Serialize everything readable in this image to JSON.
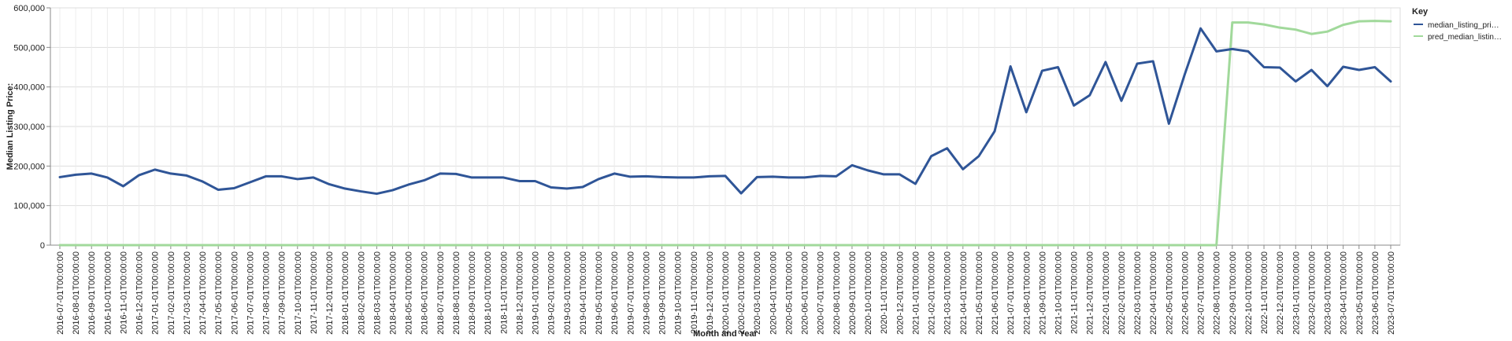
{
  "chart_data": {
    "type": "line",
    "xlabel": "Month and Year",
    "ylabel": "Median Listing Price:",
    "ylim": [
      0,
      600000
    ],
    "yticks": [
      "0",
      "100,000",
      "200,000",
      "300,000",
      "400,000",
      "500,000",
      "600,000"
    ],
    "grid": true,
    "legend": {
      "title": "Key",
      "position": "top-right",
      "entries": [
        "median_listing_pri…",
        "pred_median_listin…"
      ]
    },
    "x": [
      "2016-07-01T00:00:00",
      "2016-08-01T00:00:00",
      "2016-09-01T00:00:00",
      "2016-10-01T00:00:00",
      "2016-11-01T00:00:00",
      "2016-12-01T00:00:00",
      "2017-01-01T00:00:00",
      "2017-02-01T00:00:00",
      "2017-03-01T00:00:00",
      "2017-04-01T00:00:00",
      "2017-05-01T00:00:00",
      "2017-06-01T00:00:00",
      "2017-07-01T00:00:00",
      "2017-08-01T00:00:00",
      "2017-09-01T00:00:00",
      "2017-10-01T00:00:00",
      "2017-11-01T00:00:00",
      "2017-12-01T00:00:00",
      "2018-01-01T00:00:00",
      "2018-02-01T00:00:00",
      "2018-03-01T00:00:00",
      "2018-04-01T00:00:00",
      "2018-05-01T00:00:00",
      "2018-06-01T00:00:00",
      "2018-07-01T00:00:00",
      "2018-08-01T00:00:00",
      "2018-09-01T00:00:00",
      "2018-10-01T00:00:00",
      "2018-11-01T00:00:00",
      "2018-12-01T00:00:00",
      "2019-01-01T00:00:00",
      "2019-02-01T00:00:00",
      "2019-03-01T00:00:00",
      "2019-04-01T00:00:00",
      "2019-05-01T00:00:00",
      "2019-06-01T00:00:00",
      "2019-07-01T00:00:00",
      "2019-08-01T00:00:00",
      "2019-09-01T00:00:00",
      "2019-10-01T00:00:00",
      "2019-11-01T00:00:00",
      "2019-12-01T00:00:00",
      "2020-01-01T00:00:00",
      "2020-02-01T00:00:00",
      "2020-03-01T00:00:00",
      "2020-04-01T00:00:00",
      "2020-05-01T00:00:00",
      "2020-06-01T00:00:00",
      "2020-07-01T00:00:00",
      "2020-08-01T00:00:00",
      "2020-09-01T00:00:00",
      "2020-10-01T00:00:00",
      "2020-11-01T00:00:00",
      "2020-12-01T00:00:00",
      "2021-01-01T00:00:00",
      "2021-02-01T00:00:00",
      "2021-03-01T00:00:00",
      "2021-04-01T00:00:00",
      "2021-05-01T00:00:00",
      "2021-06-01T00:00:00",
      "2021-07-01T00:00:00",
      "2021-08-01T00:00:00",
      "2021-09-01T00:00:00",
      "2021-10-01T00:00:00",
      "2021-11-01T00:00:00",
      "2021-12-01T00:00:00",
      "2022-01-01T00:00:00",
      "2022-02-01T00:00:00",
      "2022-03-01T00:00:00",
      "2022-04-01T00:00:00",
      "2022-05-01T00:00:00",
      "2022-06-01T00:00:00",
      "2022-07-01T00:00:00",
      "2022-08-01T00:00:00",
      "2022-09-01T00:00:00",
      "2022-10-01T00:00:00",
      "2022-11-01T00:00:00",
      "2022-12-01T00:00:00",
      "2023-01-01T00:00:00",
      "2023-02-01T00:00:00",
      "2023-03-01T00:00:00",
      "2023-04-01T00:00:00",
      "2023-05-01T00:00:00",
      "2023-06-01T00:00:00",
      "2023-07-01T00:00:00"
    ],
    "series": [
      {
        "name": "median_listing_pri…",
        "color": "#2f5597",
        "values": [
          172000,
          178000,
          181000,
          171000,
          149000,
          177000,
          191000,
          181000,
          176000,
          161000,
          140000,
          144000,
          159000,
          174000,
          174000,
          167000,
          171000,
          154000,
          143000,
          136000,
          130000,
          139000,
          153000,
          164000,
          181000,
          180000,
          171000,
          171000,
          171000,
          162000,
          162000,
          146000,
          143000,
          147000,
          167000,
          181000,
          173000,
          174000,
          172000,
          171000,
          171000,
          174000,
          175000,
          131000,
          172000,
          173000,
          171000,
          171000,
          175000,
          174000,
          202000,
          189000,
          179000,
          179000,
          155000,
          225000,
          245000,
          192000,
          225000,
          288000,
          452000,
          336000,
          441000,
          450000,
          353000,
          379000,
          463000,
          365000,
          459000,
          465000,
          307000,
          432000,
          548000,
          490000,
          496000,
          490000,
          450000,
          449000,
          414000,
          443000,
          402000,
          451000,
          443000,
          450000,
          414000
        ]
      },
      {
        "name": "pred_median_listin…",
        "color": "#a1d99b",
        "values": [
          0,
          0,
          0,
          0,
          0,
          0,
          0,
          0,
          0,
          0,
          0,
          0,
          0,
          0,
          0,
          0,
          0,
          0,
          0,
          0,
          0,
          0,
          0,
          0,
          0,
          0,
          0,
          0,
          0,
          0,
          0,
          0,
          0,
          0,
          0,
          0,
          0,
          0,
          0,
          0,
          0,
          0,
          0,
          0,
          0,
          0,
          0,
          0,
          0,
          0,
          0,
          0,
          0,
          0,
          0,
          0,
          0,
          0,
          0,
          0,
          0,
          0,
          0,
          0,
          0,
          0,
          0,
          0,
          0,
          0,
          0,
          0,
          0,
          0,
          563000,
          563000,
          558000,
          550000,
          545000,
          534000,
          540000,
          557000,
          566000,
          567000,
          566000
        ]
      }
    ]
  }
}
